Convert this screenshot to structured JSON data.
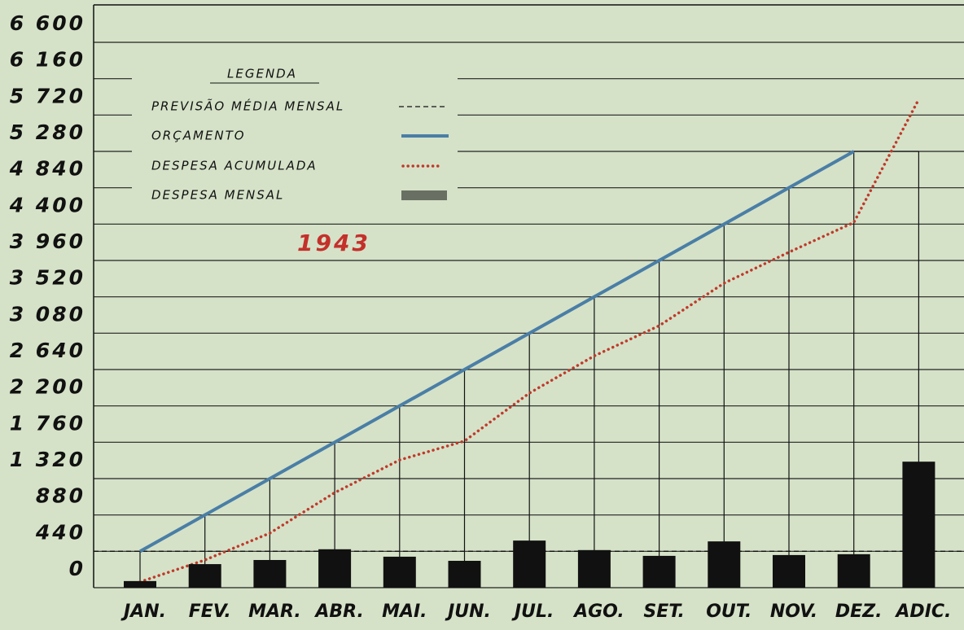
{
  "chart_data": {
    "type": "line",
    "title": "1943",
    "legend_title": "LEGENDA",
    "categories": [
      "JAN.",
      "FEV.",
      "MAR.",
      "ABR.",
      "MAI.",
      "JUN.",
      "JUL.",
      "AGO.",
      "SET.",
      "OUT.",
      "NOV.",
      "DEZ.",
      "ADIC."
    ],
    "reference_lines": [
      {
        "name": "PREVISÃO MÉDIA MENSAL",
        "value": 440,
        "color": "#111111",
        "style": "dashed"
      }
    ],
    "series": [
      {
        "name": "ORÇAMENTO",
        "type": "line",
        "style": "solid",
        "color": "#4a7ea6",
        "values": [
          440,
          880,
          1320,
          1760,
          2200,
          2640,
          3080,
          3520,
          3960,
          4400,
          4840,
          5280,
          null
        ]
      },
      {
        "name": "DESPESA ACUMULADA",
        "type": "line",
        "style": "dotted",
        "color": "#c0392b",
        "values": [
          70,
          335,
          660,
          1150,
          1545,
          1775,
          2355,
          2805,
          3170,
          3685,
          4060,
          4420,
          5910
        ]
      },
      {
        "name": "DESPESA MENSAL",
        "type": "bar",
        "color": "#111111",
        "values": [
          80,
          285,
          335,
          465,
          375,
          325,
          570,
          455,
          385,
          560,
          395,
          405,
          1525
        ]
      }
    ],
    "ylim": [
      0,
      6600
    ],
    "yticks": [
      0,
      440,
      880,
      {
        "value": 1320,
        "label": "1 320"
      },
      {
        "value": 1760,
        "label": "1 760"
      },
      {
        "value": 2200,
        "label": "2 200"
      },
      {
        "value": 2640,
        "label": "2 640"
      },
      {
        "value": 3080,
        "label": "3 080"
      },
      {
        "value": 3520,
        "label": "3 520"
      },
      {
        "value": 3960,
        "label": "3 960"
      },
      {
        "value": 4400,
        "label": "4 400"
      },
      {
        "value": 4840,
        "label": "4 840"
      },
      {
        "value": 5280,
        "label": "5 280"
      },
      {
        "value": 5720,
        "label": "5 720"
      },
      {
        "value": 6160,
        "label": "6 160"
      },
      {
        "value": 6600,
        "label": "6 600"
      }
    ],
    "grid": true
  }
}
